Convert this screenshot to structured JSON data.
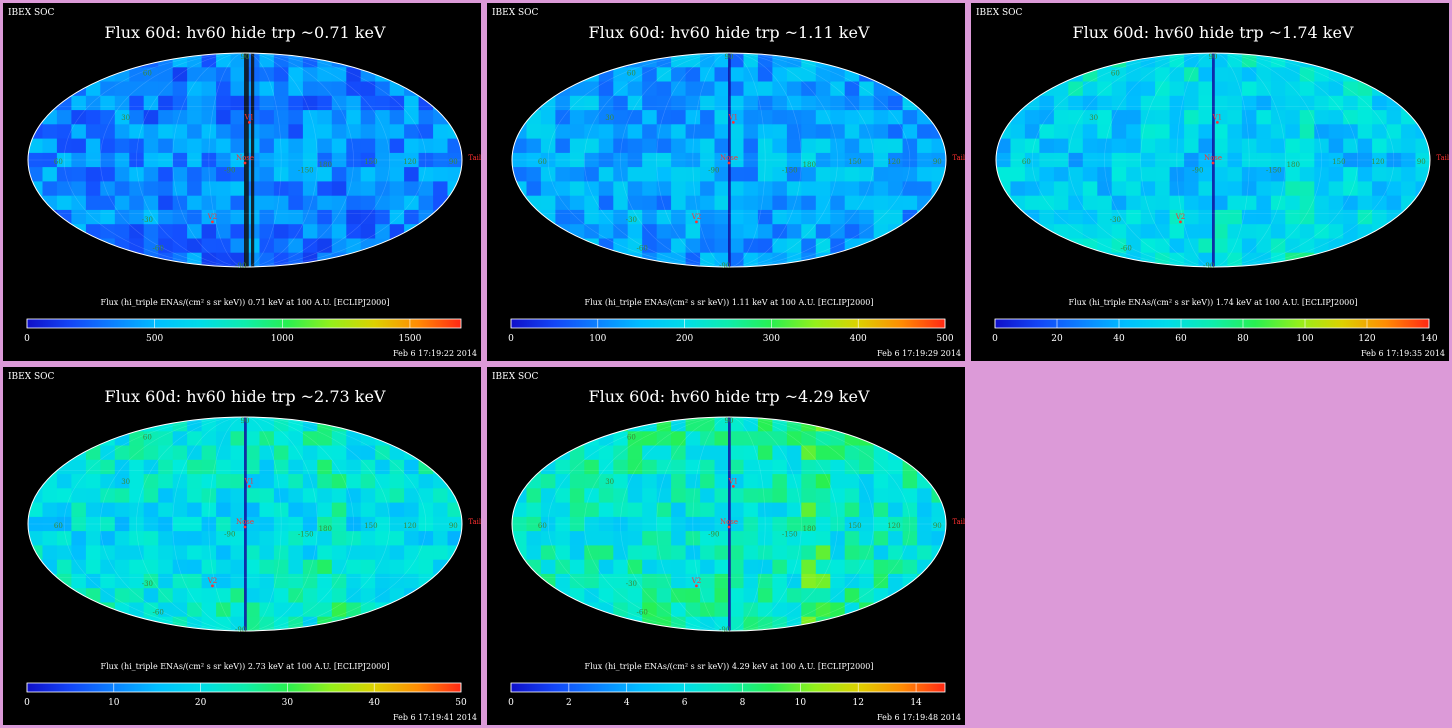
{
  "layout": {
    "columns": 3,
    "rows": 2,
    "background": "#dc9ad8"
  },
  "map_labels": {
    "lon_ticks": [
      "60",
      "-90",
      "-150",
      "180",
      "150",
      "120",
      "90"
    ],
    "lat_ticks": [
      "60",
      "30",
      "-30",
      "-60",
      "-90",
      "90"
    ],
    "markers": [
      "V1",
      "Nose",
      "V2",
      "Tail"
    ]
  },
  "panels": [
    {
      "id": "p1",
      "org": "IBEX SOC",
      "title": "Flux   60d: hv60 hide trp ~0.71 keV",
      "caption": "Flux (hi_triple ENAs/(cm² s sr keV))  0.71 keV at 100 A.U. [ECLIPJ2000]",
      "timestamp": "Feb  6 17:19:22 2014"
    },
    {
      "id": "p2",
      "org": "IBEX SOC",
      "title": "Flux   60d: hv60 hide trp ~1.11 keV",
      "caption": "Flux (hi_triple ENAs/(cm² s sr keV))  1.11 keV at 100 A.U. [ECLIPJ2000]",
      "timestamp": "Feb  6 17:19:29 2014"
    },
    {
      "id": "p3",
      "org": "IBEX SOC",
      "title": "Flux   60d: hv60 hide trp ~1.74 keV",
      "caption": "Flux (hi_triple ENAs/(cm² s sr keV))  1.74 keV at 100 A.U. [ECLIPJ2000]",
      "timestamp": "Feb  6 17:19:35 2014"
    },
    {
      "id": "p4",
      "org": "IBEX SOC",
      "title": "Flux   60d: hv60 hide trp ~2.73 keV",
      "caption": "Flux (hi_triple ENAs/(cm² s sr keV))  2.73 keV at 100 A.U. [ECLIPJ2000]",
      "timestamp": "Feb  6 17:19:41 2014"
    },
    {
      "id": "p5",
      "org": "IBEX SOC",
      "title": "Flux   60d: hv60 hide trp ~4.29 keV",
      "caption": "Flux (hi_triple ENAs/(cm² s sr keV))  4.29 keV at 100 A.U. [ECLIPJ2000]",
      "timestamp": "Feb  6 17:19:48 2014"
    }
  ],
  "chart_data": [
    {
      "type": "heatmap",
      "projection": "mollweide",
      "energy_keV": 0.71,
      "color_min": 0,
      "color_max": 1700,
      "colorbar_ticks": [
        "0",
        "500",
        "1000",
        "1500"
      ],
      "tick_values": [
        0,
        500,
        1000,
        1500
      ],
      "level": 0.22
    },
    {
      "type": "heatmap",
      "projection": "mollweide",
      "energy_keV": 1.11,
      "color_min": 0,
      "color_max": 500,
      "colorbar_ticks": [
        "0",
        "100",
        "200",
        "300",
        "400",
        "500"
      ],
      "tick_values": [
        0,
        100,
        200,
        300,
        400,
        500
      ],
      "level": 0.28
    },
    {
      "type": "heatmap",
      "projection": "mollweide",
      "energy_keV": 1.74,
      "color_min": 0,
      "color_max": 140,
      "colorbar_ticks": [
        "0",
        "20",
        "40",
        "60",
        "80",
        "100",
        "120",
        "140"
      ],
      "tick_values": [
        0,
        20,
        40,
        60,
        80,
        100,
        120,
        140
      ],
      "level": 0.33
    },
    {
      "type": "heatmap",
      "projection": "mollweide",
      "energy_keV": 2.73,
      "color_min": 0,
      "color_max": 50,
      "colorbar_ticks": [
        "0",
        "10",
        "20",
        "30",
        "40",
        "50"
      ],
      "tick_values": [
        0,
        10,
        20,
        30,
        40,
        50
      ],
      "level": 0.38
    },
    {
      "type": "heatmap",
      "projection": "mollweide",
      "energy_keV": 4.29,
      "color_min": 0,
      "color_max": 15,
      "colorbar_ticks": [
        "0",
        "2",
        "4",
        "6",
        "8",
        "10",
        "12",
        "14"
      ],
      "tick_values": [
        0,
        2,
        4,
        6,
        8,
        10,
        12,
        14
      ],
      "level": 0.42
    }
  ],
  "colors": {
    "marker": "#ff3030",
    "grid_label": "#3a8a3a",
    "frame": "#ffffff"
  }
}
